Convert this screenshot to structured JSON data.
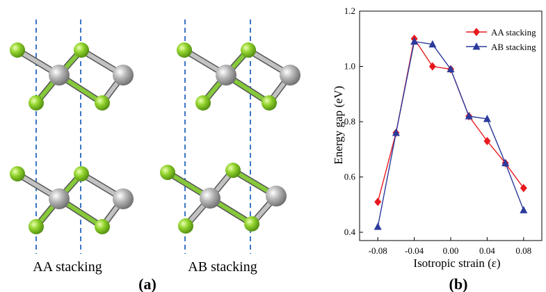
{
  "panel_a": {
    "label": "(a)",
    "structures": [
      {
        "caption": "AA stacking",
        "dashed_line_color": "#3a75c4"
      },
      {
        "caption": "AB stacking",
        "dashed_line_color": "#3a75c4"
      }
    ],
    "atom_colors": {
      "green": "#7cc520",
      "gray": "#9e9e9e"
    }
  },
  "panel_b": {
    "label": "(b)"
  },
  "chart_data": {
    "type": "line",
    "xlabel": "Isotropic strain (ε)",
    "ylabel": "Energy gap (eV)",
    "xlim": [
      -0.1,
      0.1
    ],
    "ylim": [
      0.37,
      1.2
    ],
    "x_ticks": [
      -0.08,
      -0.04,
      0.0,
      0.04,
      0.08
    ],
    "x_tick_labels": [
      "-0.08",
      "-0.04",
      "0.00",
      "0.04",
      "0.08"
    ],
    "y_ticks": [
      0.4,
      0.6,
      0.8,
      1.0,
      1.2
    ],
    "y_tick_labels": [
      "0.4",
      "0.6",
      "0.8",
      "1.0",
      "1.2"
    ],
    "grid": false,
    "legend_position": "top-right",
    "x": [
      -0.08,
      -0.06,
      -0.04,
      -0.02,
      0.0,
      0.02,
      0.04,
      0.06,
      0.08
    ],
    "series": [
      {
        "name": "AA stacking",
        "color": "#e8191e",
        "marker": "diamond",
        "values": [
          0.51,
          0.76,
          1.1,
          1.0,
          0.99,
          0.82,
          0.73,
          0.65,
          0.56
        ]
      },
      {
        "name": "AB stacking",
        "color": "#2b3a9c",
        "marker": "triangle",
        "values": [
          0.42,
          0.76,
          1.09,
          1.08,
          0.99,
          0.82,
          0.81,
          0.65,
          0.48
        ]
      }
    ]
  }
}
